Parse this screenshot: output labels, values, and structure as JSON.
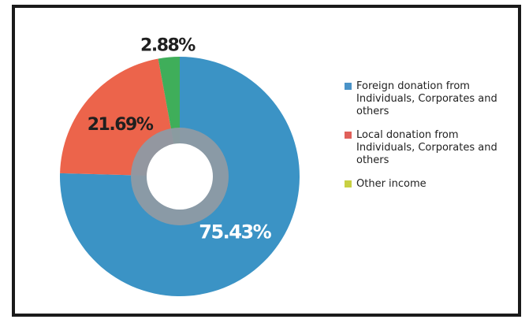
{
  "chart_data": {
    "type": "pie",
    "title": "",
    "slices": [
      {
        "label": "Foreign donation from Individuals, Corporates and others",
        "value": 75.43,
        "display": "75.43%",
        "color": "#3b93c5"
      },
      {
        "label": "Local donation from Individuals, Corporates and others",
        "value": 21.69,
        "display": "21.69%",
        "color": "#ec644b"
      },
      {
        "label": "Other income",
        "value": 2.88,
        "display": "2.88%",
        "color": "#3fae5a"
      }
    ],
    "legend": [
      {
        "label": "Foreign donation from Individuals, Corporates and others",
        "color": "#4a93c8"
      },
      {
        "label": "Local donation from Individuals, Corporates and others",
        "color": "#e0605a"
      },
      {
        "label": "Other income",
        "color": "#c8d043"
      }
    ],
    "legend_position": "right",
    "inner_ring_color": "#8e9aa4",
    "label_color_dark": "#1f1f1f",
    "label_color_light": "#ffffff"
  }
}
